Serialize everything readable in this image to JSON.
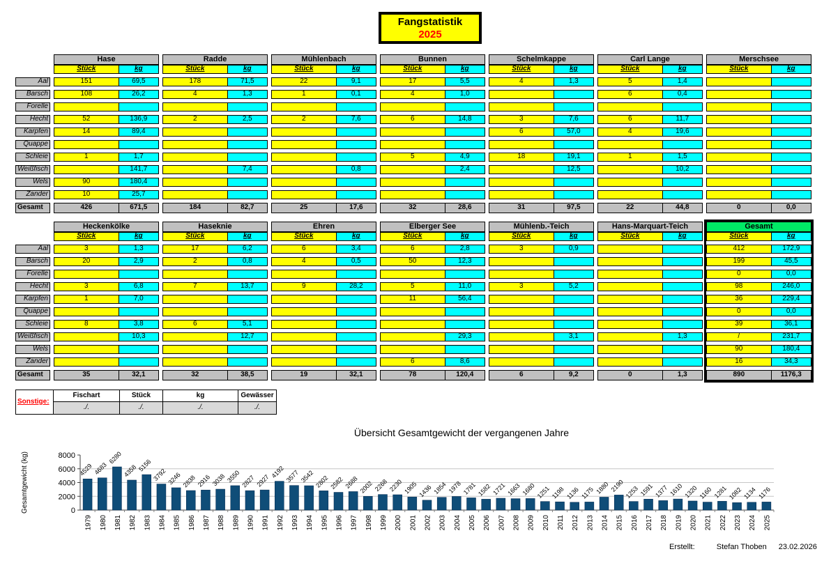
{
  "title": {
    "line1": "Fangstatistik",
    "line2": "2025"
  },
  "species": [
    "Aal",
    "Barsch",
    "Forelle",
    "Hecht",
    "Karpfen",
    "Quappe",
    "Schleie",
    "Weißfisch",
    "Wels",
    "Zander"
  ],
  "row_total_label": "Gesamt",
  "col_headers": {
    "stueck": "Stück",
    "kg": "kg"
  },
  "tables_top": [
    {
      "name": "Hase",
      "rows": [
        [
          "151",
          "69,5"
        ],
        [
          "108",
          "26,2"
        ],
        [
          "",
          ""
        ],
        [
          "52",
          "136,9"
        ],
        [
          "14",
          "89,4"
        ],
        [
          "",
          ""
        ],
        [
          "1",
          "1,7"
        ],
        [
          "",
          "141,7"
        ],
        [
          "90",
          "180,4"
        ],
        [
          "10",
          "25,7"
        ]
      ],
      "total": [
        "426",
        "671,5"
      ]
    },
    {
      "name": "Radde",
      "rows": [
        [
          "178",
          "71,5"
        ],
        [
          "4",
          "1,3"
        ],
        [
          "",
          ""
        ],
        [
          "2",
          "2,5"
        ],
        [
          "",
          ""
        ],
        [
          "",
          ""
        ],
        [
          "",
          ""
        ],
        [
          "",
          "7,4"
        ],
        [
          "",
          ""
        ],
        [
          "",
          ""
        ]
      ],
      "total": [
        "184",
        "82,7"
      ]
    },
    {
      "name": "Mühlenbach",
      "rows": [
        [
          "22",
          "9,1"
        ],
        [
          "1",
          "0,1"
        ],
        [
          "",
          ""
        ],
        [
          "2",
          "7,6"
        ],
        [
          "",
          ""
        ],
        [
          "",
          ""
        ],
        [
          "",
          ""
        ],
        [
          "",
          "0,8"
        ],
        [
          "",
          ""
        ],
        [
          "",
          ""
        ]
      ],
      "total": [
        "25",
        "17,6"
      ]
    },
    {
      "name": "Bunnen",
      "rows": [
        [
          "17",
          "5,5"
        ],
        [
          "4",
          "1,0"
        ],
        [
          "",
          ""
        ],
        [
          "6",
          "14,8"
        ],
        [
          "",
          ""
        ],
        [
          "",
          ""
        ],
        [
          "5",
          "4,9"
        ],
        [
          "",
          "2,4"
        ],
        [
          "",
          ""
        ],
        [
          "",
          ""
        ]
      ],
      "total": [
        "32",
        "28,6"
      ]
    },
    {
      "name": "Schelmkappe",
      "rows": [
        [
          "4",
          "1,3"
        ],
        [
          "",
          ""
        ],
        [
          "",
          ""
        ],
        [
          "3",
          "7,6"
        ],
        [
          "6",
          "57,0"
        ],
        [
          "",
          ""
        ],
        [
          "18",
          "19,1"
        ],
        [
          "",
          "12,5"
        ],
        [
          "",
          ""
        ],
        [
          "",
          ""
        ]
      ],
      "total": [
        "31",
        "97,5"
      ]
    },
    {
      "name": "Carl Lange",
      "rows": [
        [
          "5",
          "1,4"
        ],
        [
          "6",
          "0,4"
        ],
        [
          "",
          ""
        ],
        [
          "6",
          "11,7"
        ],
        [
          "4",
          "19,6"
        ],
        [
          "",
          ""
        ],
        [
          "1",
          "1,5"
        ],
        [
          "",
          "10,2"
        ],
        [
          "",
          ""
        ],
        [
          "",
          ""
        ]
      ],
      "total": [
        "22",
        "44,8"
      ]
    },
    {
      "name": "Merschsee",
      "rows": [
        [
          "",
          ""
        ],
        [
          "",
          ""
        ],
        [
          "",
          ""
        ],
        [
          "",
          ""
        ],
        [
          "",
          ""
        ],
        [
          "",
          ""
        ],
        [
          "",
          ""
        ],
        [
          "",
          ""
        ],
        [
          "",
          ""
        ],
        [
          "",
          ""
        ]
      ],
      "total": [
        "0",
        "0,0"
      ]
    }
  ],
  "tables_bottom": [
    {
      "name": "Heckenkölke",
      "rows": [
        [
          "3",
          "1,3"
        ],
        [
          "20",
          "2,9"
        ],
        [
          "",
          ""
        ],
        [
          "3",
          "6,8"
        ],
        [
          "1",
          "7,0"
        ],
        [
          "",
          ""
        ],
        [
          "8",
          "3,8"
        ],
        [
          "",
          "10,3"
        ],
        [
          "",
          ""
        ],
        [
          "",
          ""
        ]
      ],
      "total": [
        "35",
        "32,1"
      ]
    },
    {
      "name": "Haseknie",
      "rows": [
        [
          "17",
          "6,2"
        ],
        [
          "2",
          "0,8"
        ],
        [
          "",
          ""
        ],
        [
          "7",
          "13,7"
        ],
        [
          "",
          ""
        ],
        [
          "",
          ""
        ],
        [
          "6",
          "5,1"
        ],
        [
          "",
          "12,7"
        ],
        [
          "",
          ""
        ],
        [
          "",
          ""
        ]
      ],
      "total": [
        "32",
        "38,5"
      ]
    },
    {
      "name": "Ehren",
      "rows": [
        [
          "6",
          "3,4"
        ],
        [
          "4",
          "0,5"
        ],
        [
          "",
          ""
        ],
        [
          "9",
          "28,2"
        ],
        [
          "",
          ""
        ],
        [
          "",
          ""
        ],
        [
          "",
          ""
        ],
        [
          "",
          ""
        ],
        [
          "",
          ""
        ],
        [
          "",
          ""
        ]
      ],
      "total": [
        "19",
        "32,1"
      ]
    },
    {
      "name": "Elberger See",
      "rows": [
        [
          "6",
          "2,8"
        ],
        [
          "50",
          "12,3"
        ],
        [
          "",
          ""
        ],
        [
          "5",
          "11,0"
        ],
        [
          "11",
          "56,4"
        ],
        [
          "",
          ""
        ],
        [
          "",
          ""
        ],
        [
          "",
          "29,3"
        ],
        [
          "",
          ""
        ],
        [
          "6",
          "8,6"
        ]
      ],
      "total": [
        "78",
        "120,4"
      ]
    },
    {
      "name": "Mühlenb.-Teich",
      "rows": [
        [
          "3",
          "0,9"
        ],
        [
          "",
          ""
        ],
        [
          "",
          ""
        ],
        [
          "3",
          "5,2"
        ],
        [
          "",
          ""
        ],
        [
          "",
          ""
        ],
        [
          "",
          ""
        ],
        [
          "",
          "3,1"
        ],
        [
          "",
          ""
        ],
        [
          "",
          ""
        ]
      ],
      "total": [
        "6",
        "9,2"
      ]
    },
    {
      "name": "Hans-Marquart-Teich",
      "rows": [
        [
          "",
          ""
        ],
        [
          "",
          ""
        ],
        [
          "",
          ""
        ],
        [
          "",
          ""
        ],
        [
          "",
          ""
        ],
        [
          "",
          ""
        ],
        [
          "",
          ""
        ],
        [
          "",
          "1,3"
        ],
        [
          "",
          ""
        ],
        [
          "",
          ""
        ]
      ],
      "total": [
        "0",
        "1,3"
      ]
    },
    {
      "name": "Gesamt",
      "highlight": true,
      "rows": [
        [
          "412",
          "172,9"
        ],
        [
          "199",
          "45,5"
        ],
        [
          "0",
          "0,0"
        ],
        [
          "98",
          "246,0"
        ],
        [
          "36",
          "229,4"
        ],
        [
          "0",
          "0,0"
        ],
        [
          "39",
          "36,1"
        ],
        [
          "/",
          "231,7"
        ],
        [
          "90",
          "180,4"
        ],
        [
          "16",
          "34,3"
        ]
      ],
      "total": [
        "890",
        "1176,3"
      ]
    }
  ],
  "sonstige": {
    "label": "Sonstige:",
    "headers": [
      "Fischart",
      "Stück",
      "kg",
      "Gewässer"
    ],
    "values": [
      "./.",
      "./.",
      "./.",
      "./."
    ]
  },
  "chart_data": {
    "type": "bar",
    "title": "Übersicht Gesamtgewicht der vergangenen Jahre",
    "xlabel": "",
    "ylabel": "Gesamtgewicht (kg)",
    "categories": [
      "1979",
      "1980",
      "1981",
      "1982",
      "1983",
      "1984",
      "1985",
      "1986",
      "1987",
      "1988",
      "1989",
      "1990",
      "1991",
      "1992",
      "1993",
      "1994",
      "1995",
      "1996",
      "1997",
      "1998",
      "1999",
      "2000",
      "2001",
      "2002",
      "2003",
      "2004",
      "2005",
      "2006",
      "2007",
      "2008",
      "2009",
      "2010",
      "2011",
      "2012",
      "2013",
      "2014",
      "2015",
      "2016",
      "2017",
      "2018",
      "2019",
      "2020",
      "2021",
      "2022",
      "2023",
      "2024",
      "2025"
    ],
    "values": [
      4529,
      4683,
      6280,
      4358,
      5156,
      3792,
      3246,
      2838,
      2916,
      3038,
      3550,
      2827,
      2927,
      4192,
      3577,
      3542,
      2802,
      2582,
      2688,
      2002,
      2268,
      2230,
      1905,
      1436,
      1854,
      1978,
      1781,
      1582,
      1721,
      1663,
      1680,
      1251,
      1198,
      1136,
      1175,
      1880,
      2190,
      1253,
      1591,
      1377,
      1610,
      1320,
      1160,
      1281,
      1082,
      1134,
      1176
    ],
    "ylim": [
      0,
      8000
    ],
    "ytick_step": 2000,
    "grid": true,
    "legend": false,
    "bar_labels": true
  },
  "footer": {
    "label": "Erstellt:",
    "name": "Stefan Thoben",
    "date": "23.02.2026"
  },
  "colors": {
    "cell_yellow": "#FFFF00",
    "cell_cyan": "#00FFFF",
    "header_gray": "#C0C0C0",
    "highlight_green": "#00E966",
    "accent_red": "#FF0000",
    "bar_blue": "#0F4D78",
    "chart_bg": "#FFFFCC"
  }
}
